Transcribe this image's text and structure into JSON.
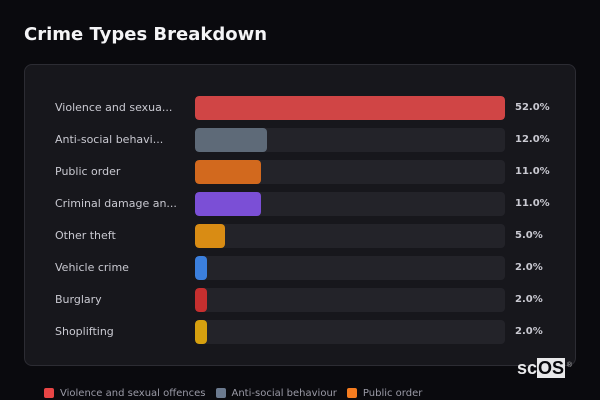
{
  "header": {
    "title": "Crime Types Breakdown"
  },
  "chart_data": {
    "type": "bar",
    "orientation": "horizontal",
    "title": "Crime Types Breakdown",
    "xlabel": "",
    "ylabel": "",
    "xlim": [
      0,
      52
    ],
    "categories": [
      "Violence and sexual offences",
      "Anti-social behaviour",
      "Public order",
      "Criminal damage and arson",
      "Other theft",
      "Vehicle crime",
      "Burglary",
      "Shoplifting"
    ],
    "values": [
      52.0,
      12.0,
      11.0,
      11.0,
      5.0,
      2.0,
      2.0,
      2.0
    ],
    "unit": "%",
    "colors": [
      "#d04545",
      "#5e6a78",
      "#d2691e",
      "#7b4fd6",
      "#d98c14",
      "#3b7fdd",
      "#c62f2f",
      "#d6a00f"
    ],
    "legend_position": "bottom"
  },
  "rows": [
    {
      "label": "Violence and sexua...",
      "value_label": "52.0%",
      "value": 52.0,
      "color": "#d04545"
    },
    {
      "label": "Anti-social behavi...",
      "value_label": "12.0%",
      "value": 12.0,
      "color": "#5e6a78"
    },
    {
      "label": "Public order",
      "value_label": "11.0%",
      "value": 11.0,
      "color": "#d2691e"
    },
    {
      "label": "Criminal damage an...",
      "value_label": "11.0%",
      "value": 11.0,
      "color": "#7b4fd6"
    },
    {
      "label": "Other theft",
      "value_label": "5.0%",
      "value": 5.0,
      "color": "#d98c14"
    },
    {
      "label": "Vehicle crime",
      "value_label": "2.0%",
      "value": 2.0,
      "color": "#3b7fdd"
    },
    {
      "label": "Burglary",
      "value_label": "2.0%",
      "value": 2.0,
      "color": "#c62f2f"
    },
    {
      "label": "Shoplifting",
      "value_label": "2.0%",
      "value": 2.0,
      "color": "#d6a00f"
    }
  ],
  "legend": [
    {
      "label": "Violence and sexual offences",
      "color": "#e84545"
    },
    {
      "label": "Anti-social behaviour",
      "color": "#6b7a8f"
    },
    {
      "label": "Public order",
      "color": "#f57c20"
    }
  ],
  "logo": {
    "prefix": "sc",
    "boxed": "OS",
    "mark": "®"
  }
}
